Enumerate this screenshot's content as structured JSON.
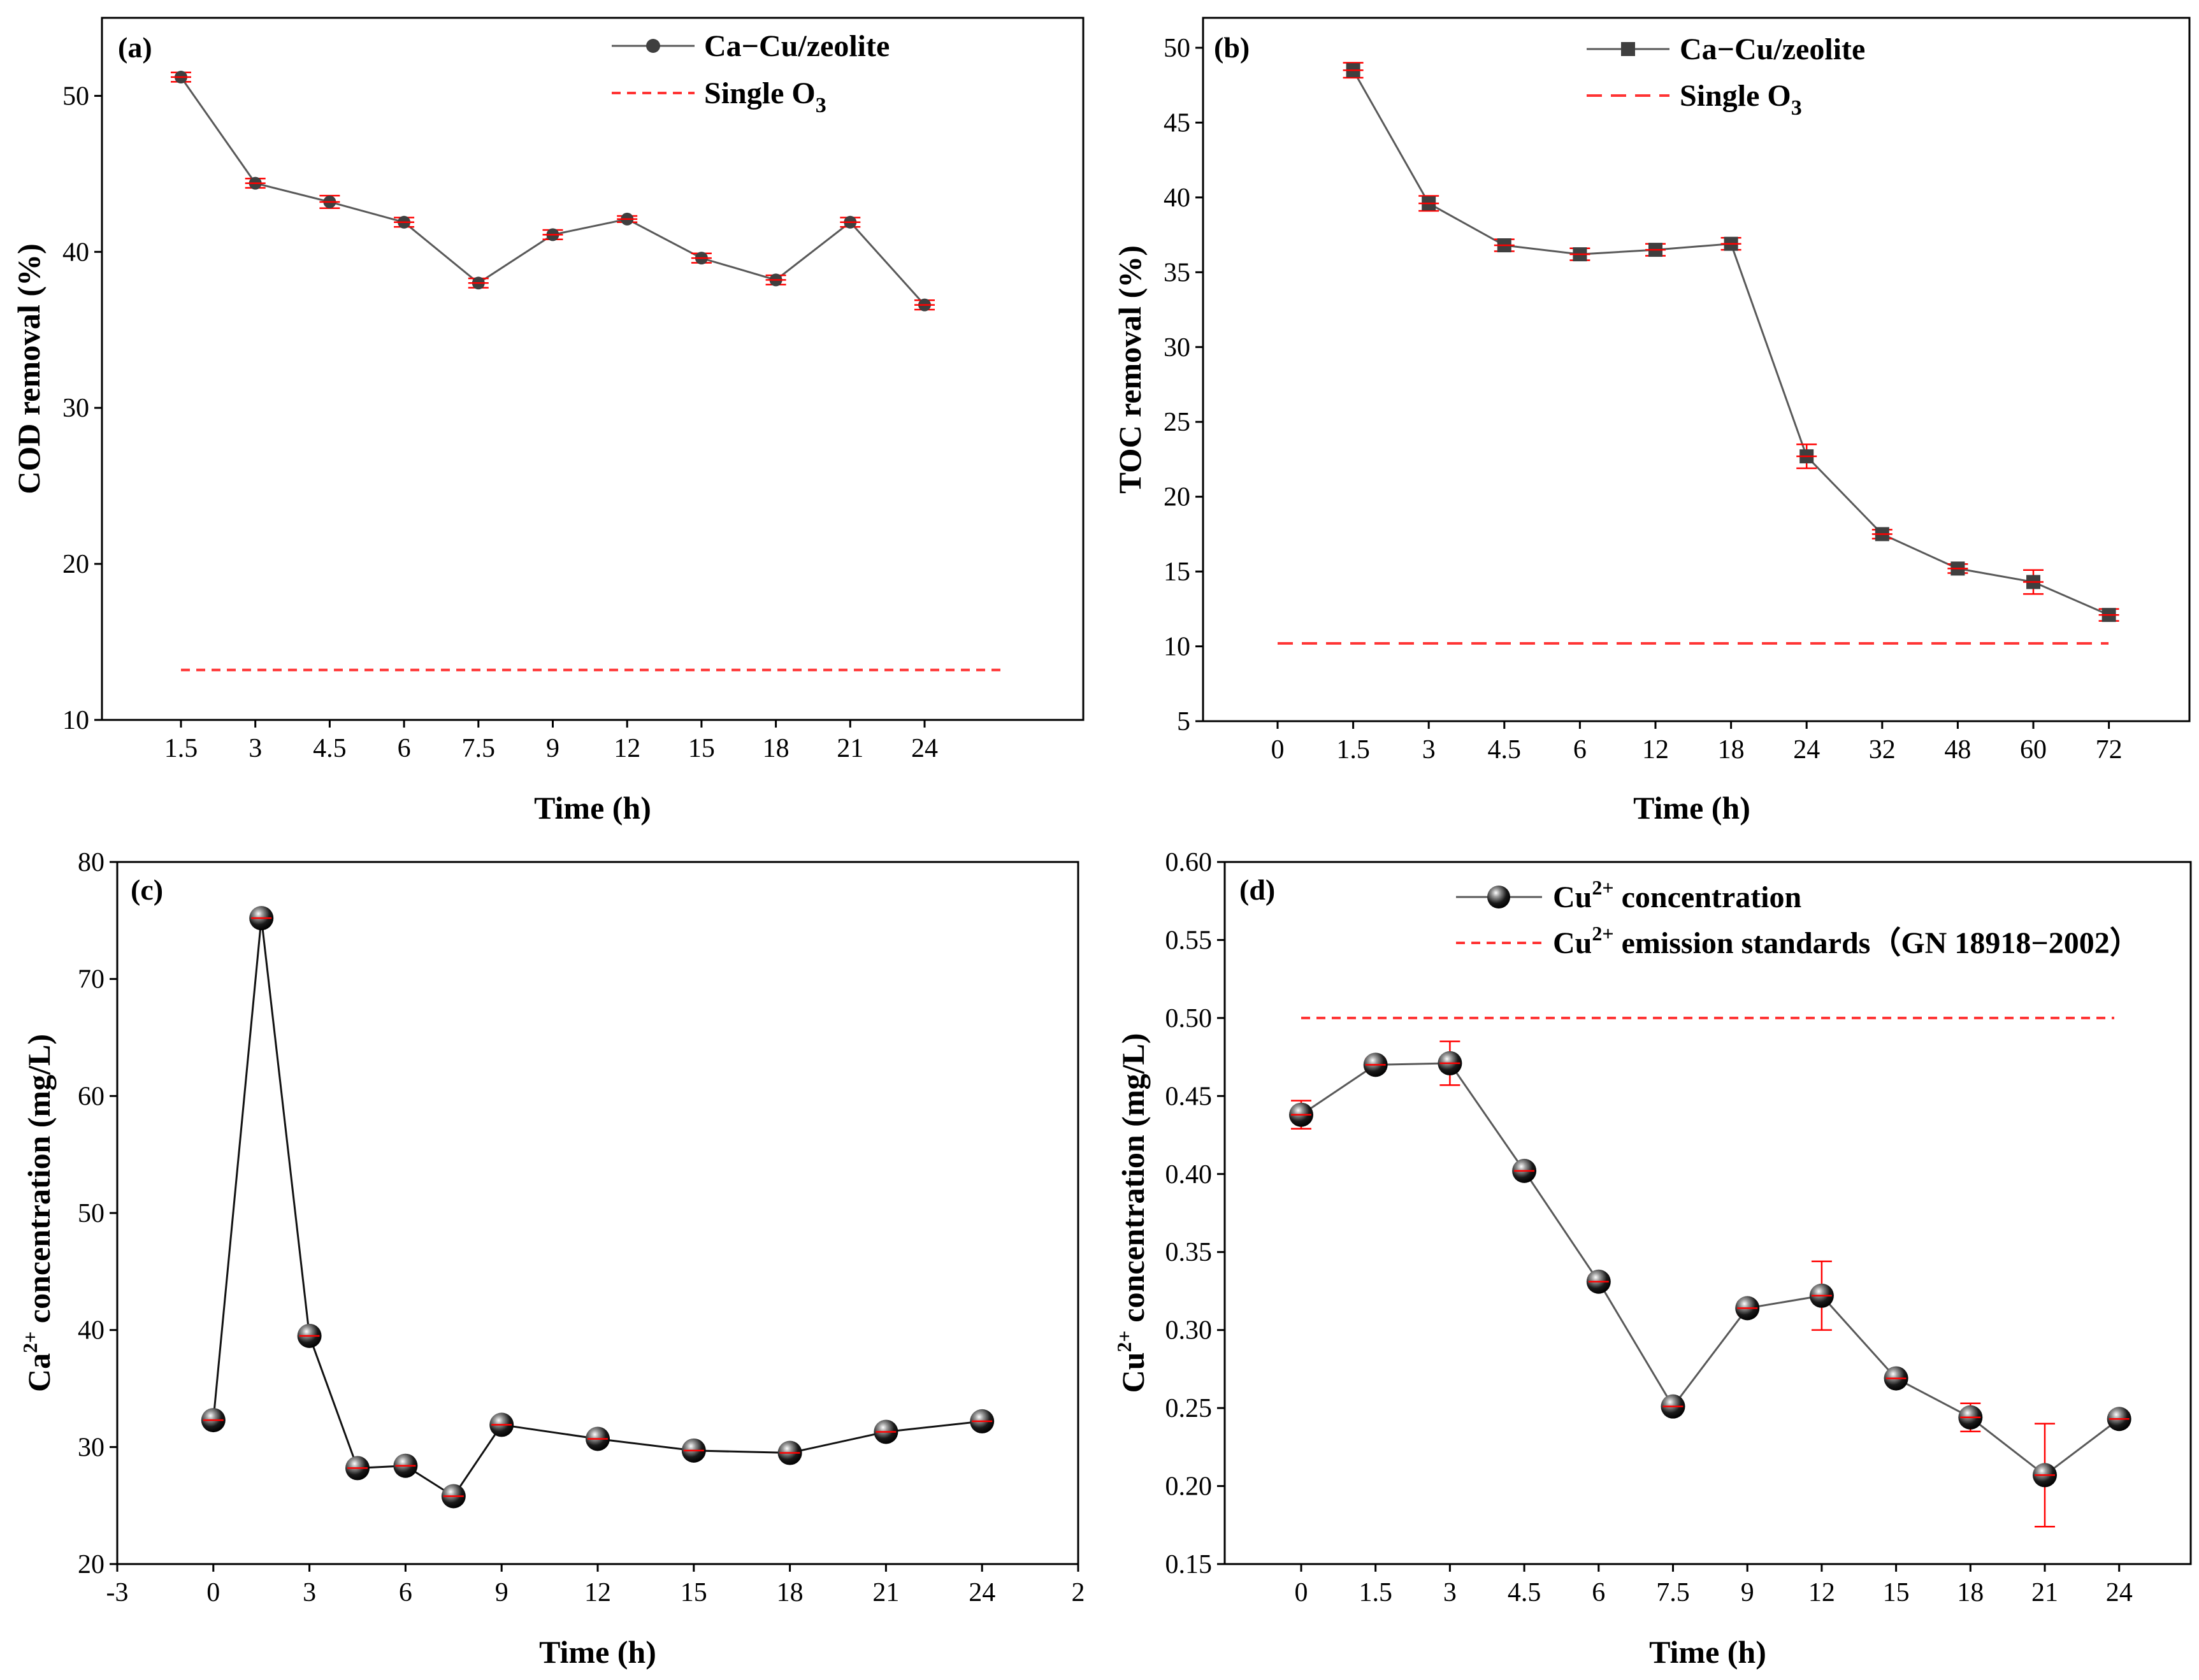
{
  "chart_data": [
    {
      "panel": "a",
      "tag": "(a)",
      "type": "line",
      "categories": [
        "1.5",
        "3",
        "4.5",
        "6",
        "7.5",
        "9",
        "12",
        "15",
        "18",
        "21",
        "24"
      ],
      "ylim": [
        10,
        55
      ],
      "yticks": [
        "10",
        "20",
        "30",
        "40",
        "50"
      ],
      "xlabel": "Time (h)",
      "ylabel": "COD removal (%)",
      "marker": "circle",
      "series": [
        {
          "name": "Ca−Cu/zeolite",
          "values": [
            51.2,
            44.4,
            43.2,
            41.9,
            38.0,
            41.1,
            42.1,
            39.6,
            38.2,
            41.9,
            36.6
          ],
          "errors": [
            0.3,
            0.3,
            0.4,
            0.3,
            0.3,
            0.3,
            0.2,
            0.3,
            0.3,
            0.3,
            0.3
          ]
        }
      ],
      "reference": {
        "name": "Single O",
        "sub": "3",
        "value": 13.2
      },
      "legend_position": "top-right"
    },
    {
      "panel": "b",
      "tag": "(b)",
      "type": "line",
      "categories": [
        "0",
        "1.5",
        "3",
        "4.5",
        "6",
        "12",
        "18",
        "24",
        "32",
        "48",
        "60",
        "72"
      ],
      "ylim": [
        5,
        52
      ],
      "yticks": [
        "5",
        "10",
        "15",
        "20",
        "25",
        "30",
        "35",
        "40",
        "45",
        "50"
      ],
      "xlabel": "Time (h)",
      "ylabel": "TOC removal (%)",
      "marker": "square",
      "series": [
        {
          "name": "Ca−Cu/zeolite",
          "values": [
            null,
            48.5,
            39.6,
            36.8,
            36.2,
            36.5,
            36.9,
            22.7,
            17.5,
            15.2,
            14.3,
            12.1
          ],
          "errors": [
            null,
            0.5,
            0.5,
            0.4,
            0.4,
            0.4,
            0.4,
            0.8,
            0.3,
            0.3,
            0.8,
            0.4
          ]
        }
      ],
      "reference": {
        "name": "Single O",
        "sub": "3",
        "value": 10.2
      },
      "legend_position": "top-right"
    },
    {
      "panel": "c",
      "tag": "(c)",
      "type": "line",
      "x": [
        0,
        1.5,
        3,
        4.5,
        6,
        7.5,
        9,
        12,
        15,
        18,
        21,
        24
      ],
      "xlim": [
        -3,
        27
      ],
      "xticks": [
        "-3",
        "0",
        "3",
        "6",
        "9",
        "12",
        "15",
        "18",
        "21",
        "24",
        "2"
      ],
      "ylim": [
        20,
        80
      ],
      "yticks": [
        "20",
        "30",
        "40",
        "50",
        "60",
        "70",
        "80"
      ],
      "xlabel": "Time (h)",
      "ylabel": "Ca concentration (mg/L)",
      "ylabel_ion": "Ca",
      "ylabel_sup": "2+",
      "ylabel_rest": " concentration (mg/L)",
      "marker": "sphere",
      "series": [
        {
          "name": "Ca2+ concentration",
          "values": [
            32.3,
            75.2,
            39.5,
            28.2,
            28.4,
            25.8,
            31.9,
            30.7,
            29.7,
            29.5,
            31.3,
            32.2
          ],
          "errors": [
            0.3,
            0.3,
            0.3,
            0.3,
            0.3,
            0.3,
            0.3,
            0.3,
            0.3,
            0.3,
            0.3,
            0.3
          ]
        }
      ]
    },
    {
      "panel": "d",
      "tag": "(d)",
      "type": "line",
      "categories": [
        "0",
        "1.5",
        "3",
        "4.5",
        "6",
        "7.5",
        "9",
        "12",
        "15",
        "18",
        "21",
        "24"
      ],
      "ylim": [
        0.15,
        0.6
      ],
      "yticks": [
        "0.15",
        "0.20",
        "0.25",
        "0.30",
        "0.35",
        "0.40",
        "0.45",
        "0.50",
        "0.55",
        "0.60"
      ],
      "xlabel": "Time (h)",
      "ylabel": "Cu concentration (mg/L)",
      "ylabel_ion": "Cu",
      "ylabel_sup": "2+",
      "ylabel_rest": " concentration (mg/L)",
      "marker": "sphere",
      "series": [
        {
          "name": "Cu concentration",
          "legend_ion": "Cu",
          "legend_sup": "2+",
          "legend_rest": " concentration",
          "values": [
            0.438,
            0.47,
            0.471,
            0.402,
            0.331,
            0.251,
            0.314,
            0.322,
            0.269,
            0.244,
            0.207,
            0.243
          ],
          "errors": [
            0.009,
            0.004,
            0.014,
            0.003,
            0.004,
            0.003,
            0.004,
            0.022,
            0.003,
            0.009,
            0.033,
            0.004
          ]
        }
      ],
      "reference": {
        "name": "Cu emission standards（GN 18918−2002）",
        "ion": "Cu",
        "sup": "2+",
        "rest": " emission standards（GN 18918−2002）",
        "value": 0.5
      },
      "legend_position": "top-right"
    }
  ],
  "colors": {
    "series_line": "#595959",
    "marker": "#3f3f3f",
    "errorbar": "#ff0000",
    "reference": "#ff3333",
    "axis": "#000000"
  }
}
